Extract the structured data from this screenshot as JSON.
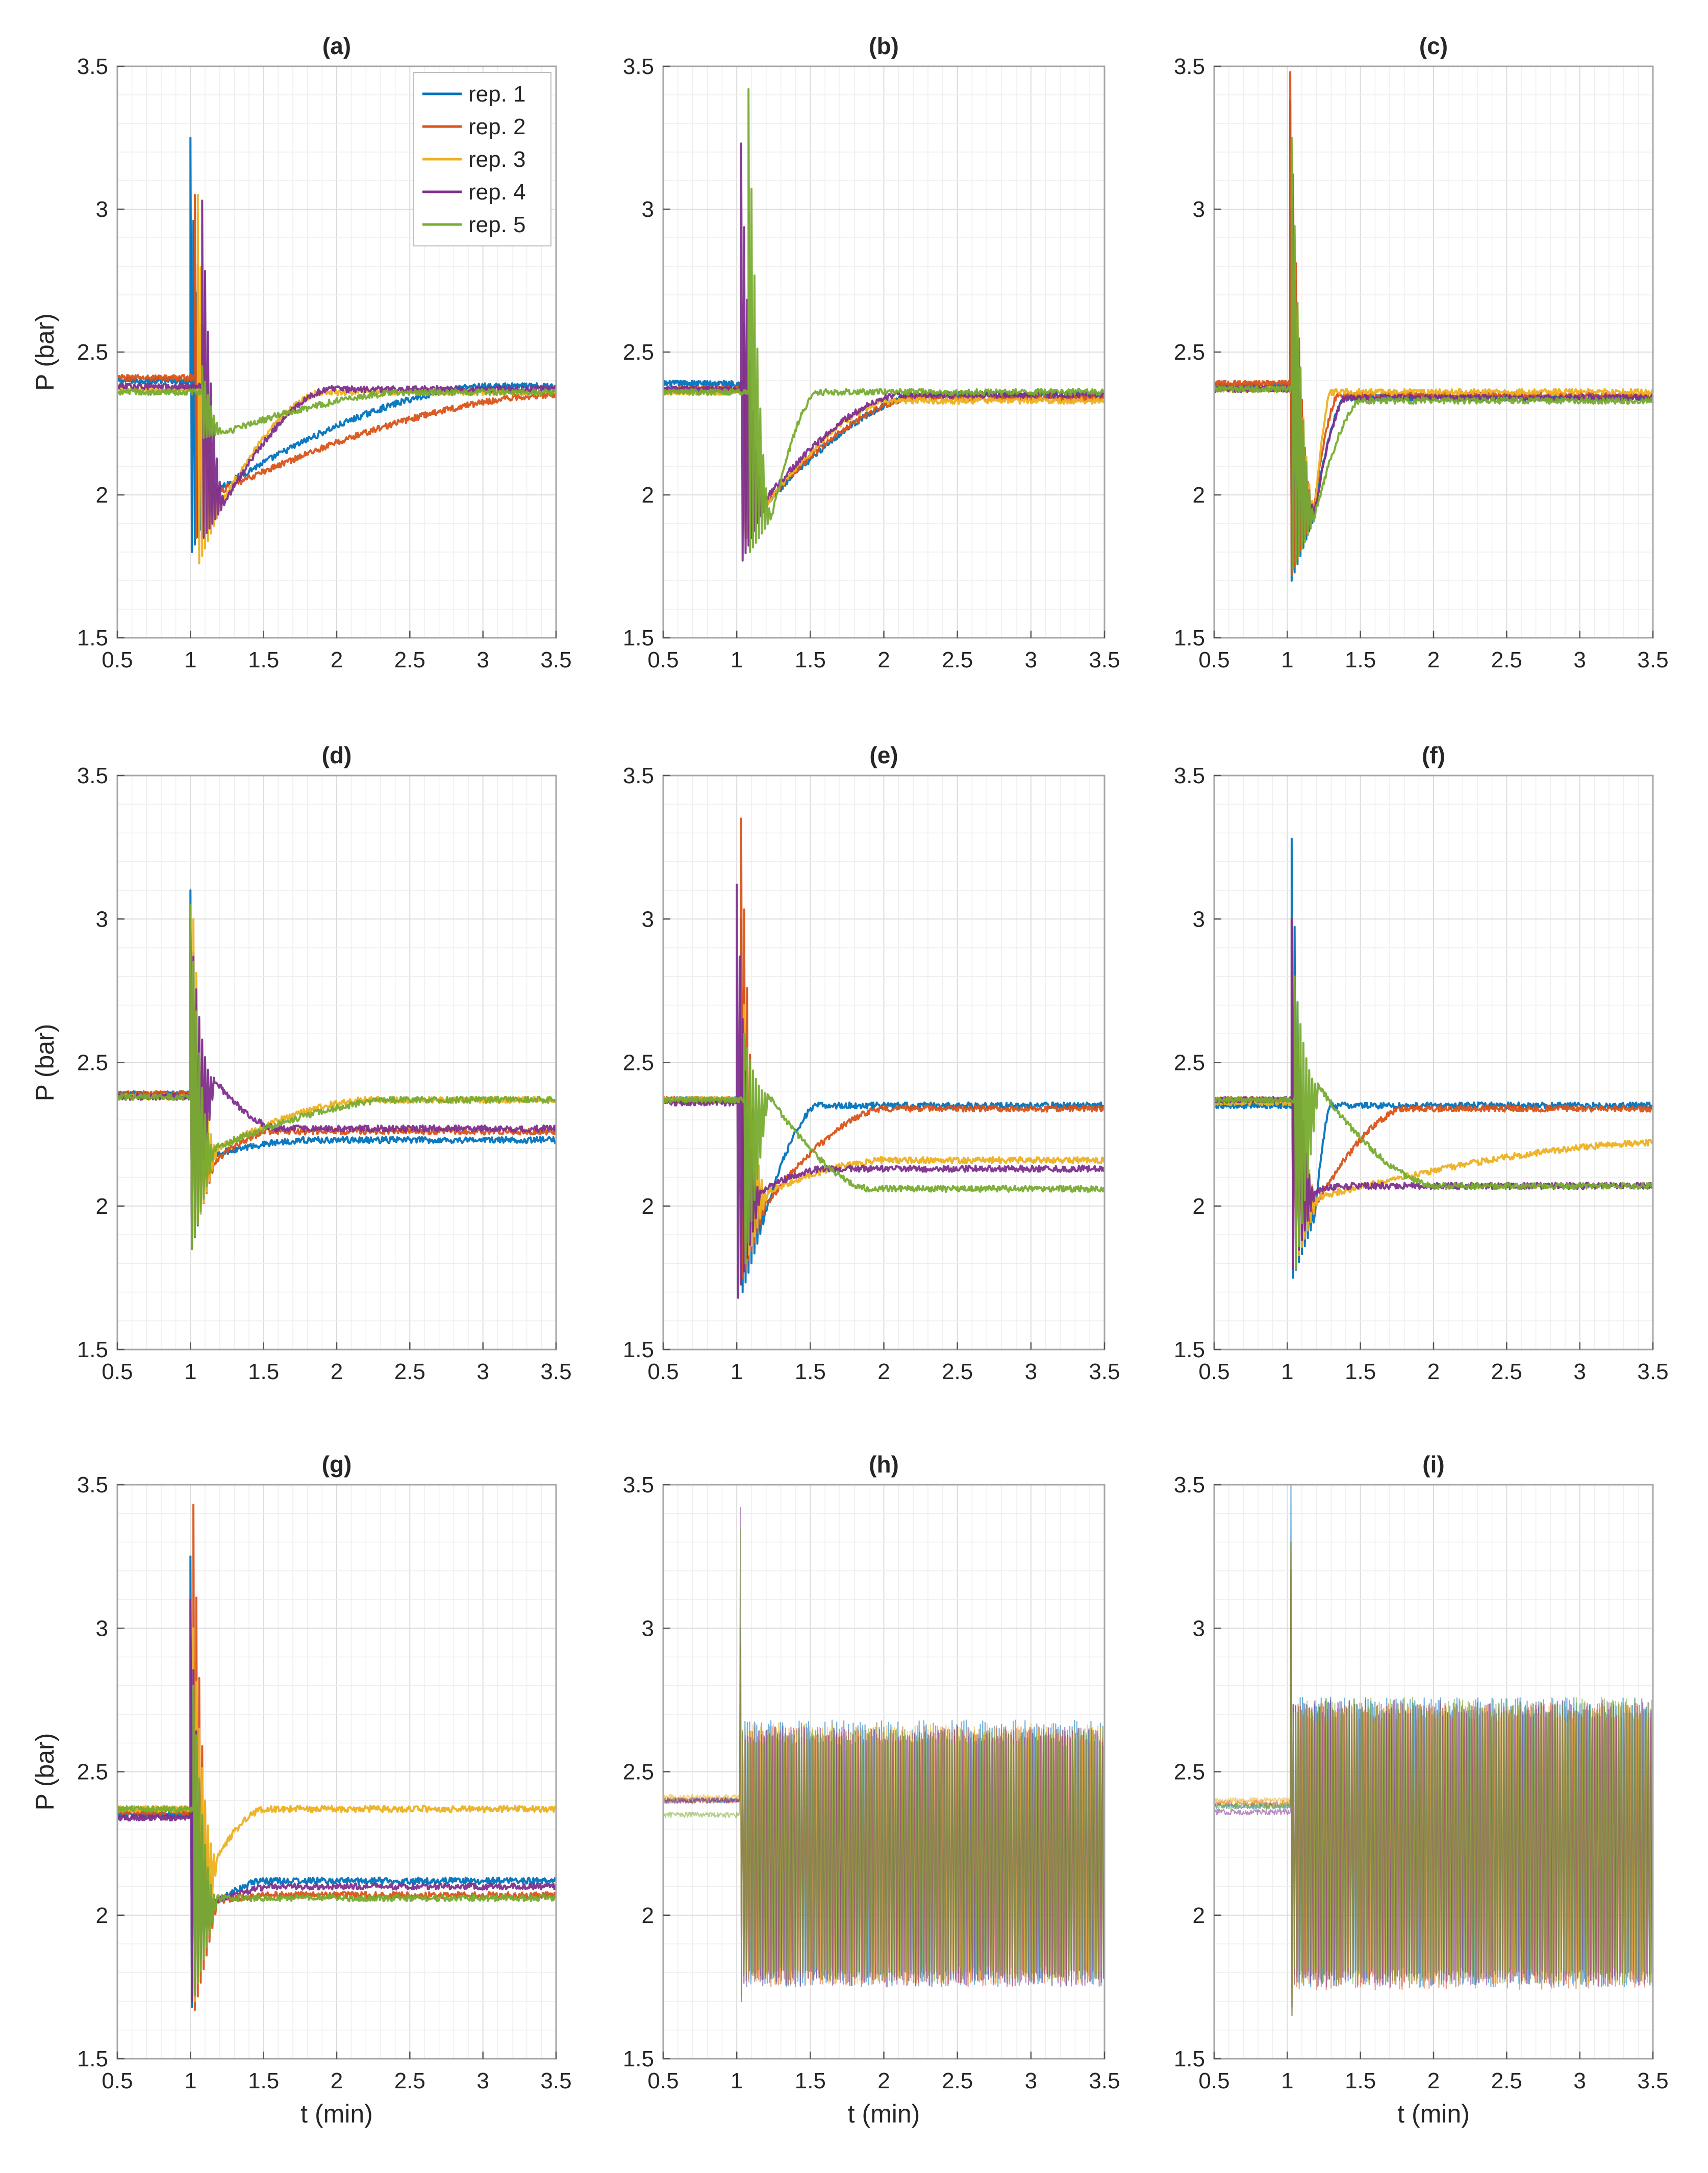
{
  "figure": {
    "ylabel": "P (bar)",
    "xlabel": "t (min)",
    "xlim": [
      0.5,
      3.5
    ],
    "ylim": [
      1.5,
      3.5
    ],
    "xticks": [
      "0.5",
      "1",
      "1.5",
      "2",
      "2.5",
      "3",
      "3.5"
    ],
    "yticks": [
      "1.5",
      "2",
      "2.5",
      "3",
      "3.5"
    ]
  },
  "legend": {
    "entries": [
      "rep. 1",
      "rep. 2",
      "rep. 3",
      "rep. 4",
      "rep. 5"
    ]
  },
  "colors": {
    "rep1": "#0072BD",
    "rep2": "#D95319",
    "rep3": "#EDB120",
    "rep4": "#7E2F8E",
    "rep5": "#77AC30",
    "grid": "#e6e6e6",
    "axis": "#a6a6a6"
  },
  "chart_data": [
    {
      "panel": "(a)",
      "type": "line",
      "title": "(a)",
      "xlabel": "",
      "ylabel": "P (bar)",
      "xlim": [
        0.5,
        3.5
      ],
      "ylim": [
        1.5,
        3.5
      ],
      "grid": true,
      "legend": "top-right",
      "series": [
        {
          "name": "rep. 1",
          "baseline": 2.4,
          "step_time": 1.0,
          "spike_max": 3.25,
          "spike_min": 1.8,
          "recovery_start": 2.01,
          "recovery_end_time": 3.0,
          "final": 2.38,
          "oscillating": false
        },
        {
          "name": "rep. 2",
          "baseline": 2.41,
          "step_time": 1.03,
          "spike_max": 3.05,
          "spike_min": 1.85,
          "recovery_start": 2.01,
          "recovery_end_time": 3.45,
          "final": 2.35,
          "oscillating": false
        },
        {
          "name": "rep. 3",
          "baseline": 2.37,
          "step_time": 1.05,
          "spike_max": 3.05,
          "spike_min": 1.76,
          "recovery_start": 1.97,
          "recovery_end_time": 1.9,
          "final": 2.36,
          "oscillating": false
        },
        {
          "name": "rep. 4",
          "baseline": 2.38,
          "step_time": 1.08,
          "spike_max": 3.03,
          "spike_min": 1.85,
          "recovery_start": 1.98,
          "recovery_end_time": 1.95,
          "final": 2.37,
          "oscillating": false
        },
        {
          "name": "rep. 5",
          "baseline": 2.36,
          "step_time": 1.08,
          "spike_max": 2.45,
          "spike_min": 2.2,
          "recovery_start": 2.22,
          "recovery_end_time": 2.5,
          "final": 2.36,
          "oscillating": false
        }
      ]
    },
    {
      "panel": "(b)",
      "type": "line",
      "title": "(b)",
      "xlabel": "",
      "ylabel": "",
      "xlim": [
        0.5,
        3.5
      ],
      "ylim": [
        1.5,
        3.5
      ],
      "grid": true,
      "series": [
        {
          "name": "rep. 1",
          "baseline": 2.39,
          "step_time": 1.05,
          "spike_max": 2.6,
          "spike_min": 1.85,
          "recovery_start": 1.97,
          "recovery_end_time": 2.25,
          "final": 2.35,
          "oscillating": false
        },
        {
          "name": "rep. 2",
          "baseline": 2.37,
          "step_time": 1.05,
          "spike_max": 2.55,
          "spike_min": 1.85,
          "recovery_start": 1.98,
          "recovery_end_time": 2.2,
          "final": 2.34,
          "oscillating": false
        },
        {
          "name": "rep. 3",
          "baseline": 2.36,
          "step_time": 1.06,
          "spike_max": 2.5,
          "spike_min": 1.85,
          "recovery_start": 1.98,
          "recovery_end_time": 2.05,
          "final": 2.33,
          "oscillating": false
        },
        {
          "name": "rep. 4",
          "baseline": 2.37,
          "step_time": 1.03,
          "spike_max": 3.23,
          "spike_min": 1.77,
          "recovery_start": 1.98,
          "recovery_end_time": 2.1,
          "final": 2.35,
          "oscillating": false
        },
        {
          "name": "rep. 5",
          "baseline": 2.36,
          "step_time": 1.08,
          "spike_max": 3.42,
          "spike_min": 1.8,
          "recovery_start": 1.93,
          "recovery_end_time": 1.55,
          "final": 2.36,
          "oscillating": false
        }
      ]
    },
    {
      "panel": "(c)",
      "type": "line",
      "title": "(c)",
      "xlabel": "",
      "ylabel": "",
      "xlim": [
        0.5,
        3.5
      ],
      "ylim": [
        1.5,
        3.5
      ],
      "grid": true,
      "series": [
        {
          "name": "rep. 1",
          "baseline": 2.38,
          "step_time": 1.02,
          "spike_max": 3.38,
          "spike_min": 1.7,
          "recovery_start": 1.93,
          "recovery_end_time": 1.4,
          "final": 2.34,
          "oscillating": false
        },
        {
          "name": "rep. 2",
          "baseline": 2.39,
          "step_time": 1.02,
          "spike_max": 3.48,
          "spike_min": 1.72,
          "recovery_start": 1.95,
          "recovery_end_time": 1.35,
          "final": 2.35,
          "oscillating": false
        },
        {
          "name": "rep. 3",
          "baseline": 2.37,
          "step_time": 1.03,
          "spike_max": 3.2,
          "spike_min": 1.75,
          "recovery_start": 1.96,
          "recovery_end_time": 1.3,
          "final": 2.36,
          "oscillating": false
        },
        {
          "name": "rep. 4",
          "baseline": 2.37,
          "step_time": 1.03,
          "spike_max": 3.0,
          "spike_min": 1.75,
          "recovery_start": 1.95,
          "recovery_end_time": 1.4,
          "final": 2.34,
          "oscillating": false
        },
        {
          "name": "rep. 5",
          "baseline": 2.37,
          "step_time": 1.03,
          "spike_max": 3.25,
          "spike_min": 1.74,
          "recovery_start": 1.93,
          "recovery_end_time": 1.5,
          "final": 2.33,
          "oscillating": false
        }
      ]
    },
    {
      "panel": "(d)",
      "type": "line",
      "title": "(d)",
      "xlabel": "",
      "ylabel": "P (bar)",
      "xlim": [
        0.5,
        3.5
      ],
      "ylim": [
        1.5,
        3.5
      ],
      "grid": true,
      "series": [
        {
          "name": "rep. 1",
          "baseline": 2.39,
          "step_time": 1.0,
          "spike_max": 3.1,
          "spike_min": 1.85,
          "recovery_start": 2.18,
          "recovery_end_time": 1.8,
          "final": 2.23,
          "oscillating": false
        },
        {
          "name": "rep. 2",
          "baseline": 2.39,
          "step_time": 1.0,
          "spike_max": 3.05,
          "spike_min": 1.87,
          "recovery_start": 2.15,
          "recovery_end_time": 1.55,
          "final": 2.26,
          "oscillating": false
        },
        {
          "name": "rep. 3",
          "baseline": 2.38,
          "step_time": 1.02,
          "spike_max": 3.0,
          "spike_min": 1.9,
          "recovery_start": 2.2,
          "recovery_end_time": 2.2,
          "final": 2.37,
          "oscillating": false
        },
        {
          "name": "rep. 4",
          "baseline": 2.38,
          "step_time": 1.0,
          "spike_max": 3.0,
          "spike_min": 1.88,
          "recovery_start": 2.44,
          "recovery_end_time": 1.6,
          "final": 2.27,
          "oscillating": false
        },
        {
          "name": "rep. 5",
          "baseline": 2.38,
          "step_time": 1.0,
          "spike_max": 3.05,
          "spike_min": 1.85,
          "recovery_start": 2.2,
          "recovery_end_time": 2.4,
          "final": 2.37,
          "oscillating": false
        }
      ]
    },
    {
      "panel": "(e)",
      "type": "line",
      "title": "(e)",
      "xlabel": "",
      "ylabel": "",
      "xlim": [
        0.5,
        3.5
      ],
      "ylim": [
        1.5,
        3.5
      ],
      "grid": true,
      "series": [
        {
          "name": "rep. 1",
          "baseline": 2.37,
          "step_time": 1.03,
          "spike_max": 3.0,
          "spike_min": 1.7,
          "recovery_start": 1.97,
          "recovery_end_time": 1.55,
          "final": 2.35,
          "oscillating": false
        },
        {
          "name": "rep. 2",
          "baseline": 2.37,
          "step_time": 1.03,
          "spike_max": 3.35,
          "spike_min": 1.75,
          "recovery_start": 2.0,
          "recovery_end_time": 2.0,
          "final": 2.34,
          "oscillating": false
        },
        {
          "name": "rep. 3",
          "baseline": 2.37,
          "step_time": 1.05,
          "spike_max": 2.7,
          "spike_min": 1.8,
          "recovery_start": 2.05,
          "recovery_end_time": 2.0,
          "final": 2.16,
          "oscillating": false
        },
        {
          "name": "rep. 4",
          "baseline": 2.36,
          "step_time": 1.0,
          "spike_max": 3.12,
          "spike_min": 1.68,
          "recovery_start": 2.05,
          "recovery_end_time": 1.6,
          "final": 2.13,
          "oscillating": false
        },
        {
          "name": "rep. 5",
          "baseline": 2.37,
          "step_time": 1.05,
          "spike_max": 2.6,
          "spike_min": 1.8,
          "recovery_start": 2.39,
          "recovery_end_time": 1.9,
          "final": 2.06,
          "oscillating": false
        }
      ]
    },
    {
      "panel": "(f)",
      "type": "line",
      "title": "(f)",
      "xlabel": "",
      "ylabel": "",
      "xlim": [
        0.5,
        3.5
      ],
      "ylim": [
        1.5,
        3.5
      ],
      "grid": true,
      "series": [
        {
          "name": "rep. 1",
          "baseline": 2.35,
          "step_time": 1.03,
          "spike_max": 3.28,
          "spike_min": 1.75,
          "recovery_start": 1.97,
          "recovery_end_time": 1.3,
          "final": 2.35,
          "oscillating": false
        },
        {
          "name": "rep. 2",
          "baseline": 2.37,
          "step_time": 1.03,
          "spike_max": 3.0,
          "spike_min": 1.8,
          "recovery_start": 2.0,
          "recovery_end_time": 1.8,
          "final": 2.34,
          "oscillating": false
        },
        {
          "name": "rep. 3",
          "baseline": 2.36,
          "step_time": 1.05,
          "spike_max": 2.7,
          "spike_min": 1.8,
          "recovery_start": 2.03,
          "recovery_end_time": 3.5,
          "final": 2.22,
          "oscillating": false
        },
        {
          "name": "rep. 4",
          "baseline": 2.37,
          "step_time": 1.03,
          "spike_max": 3.0,
          "spike_min": 1.78,
          "recovery_start": 2.05,
          "recovery_end_time": 1.4,
          "final": 2.07,
          "oscillating": false
        },
        {
          "name": "rep. 5",
          "baseline": 2.37,
          "step_time": 1.05,
          "spike_max": 2.8,
          "spike_min": 1.78,
          "recovery_start": 2.42,
          "recovery_end_time": 2.0,
          "final": 2.07,
          "oscillating": false
        }
      ]
    },
    {
      "panel": "(g)",
      "type": "line",
      "title": "(g)",
      "xlabel": "t (min)",
      "ylabel": "P (bar)",
      "xlim": [
        0.5,
        3.5
      ],
      "ylim": [
        1.5,
        3.5
      ],
      "grid": true,
      "series": [
        {
          "name": "rep. 1",
          "baseline": 2.35,
          "step_time": 1.0,
          "spike_max": 3.25,
          "spike_min": 1.68,
          "recovery_start": 2.04,
          "recovery_end_time": 1.5,
          "final": 2.12,
          "oscillating": false
        },
        {
          "name": "rep. 2",
          "baseline": 2.36,
          "step_time": 1.02,
          "spike_max": 3.43,
          "spike_min": 1.67,
          "recovery_start": 2.05,
          "recovery_end_time": 1.6,
          "final": 2.07,
          "oscillating": false
        },
        {
          "name": "rep. 3",
          "baseline": 2.37,
          "step_time": 1.02,
          "spike_max": 3.0,
          "spike_min": 1.7,
          "recovery_start": 2.2,
          "recovery_end_time": 1.5,
          "final": 2.37,
          "oscillating": false
        },
        {
          "name": "rep. 4",
          "baseline": 2.34,
          "step_time": 1.0,
          "spike_max": 3.1,
          "spike_min": 1.7,
          "recovery_start": 2.05,
          "recovery_end_time": 1.6,
          "final": 2.1,
          "oscillating": false
        },
        {
          "name": "rep. 5",
          "baseline": 2.37,
          "step_time": 1.02,
          "spike_max": 2.8,
          "spike_min": 1.72,
          "recovery_start": 2.06,
          "recovery_end_time": 1.6,
          "final": 2.06,
          "oscillating": false
        }
      ]
    },
    {
      "panel": "(h)",
      "type": "line",
      "title": "(h)",
      "xlabel": "t (min)",
      "ylabel": "",
      "xlim": [
        0.5,
        3.5
      ],
      "ylim": [
        1.5,
        3.5
      ],
      "grid": true,
      "series": [
        {
          "name": "rep. 1",
          "baseline": 2.4,
          "step_time": 1.02,
          "spike_max": 3.0,
          "spike_min": 1.7,
          "band_min": 1.75,
          "band_max": 2.68,
          "oscillating": true
        },
        {
          "name": "rep. 2",
          "baseline": 2.4,
          "step_time": 1.02,
          "spike_max": 2.95,
          "spike_min": 1.7,
          "band_min": 1.75,
          "band_max": 2.66,
          "oscillating": true
        },
        {
          "name": "rep. 3",
          "baseline": 2.41,
          "step_time": 1.02,
          "spike_max": 2.9,
          "spike_min": 1.72,
          "band_min": 1.76,
          "band_max": 2.67,
          "oscillating": true
        },
        {
          "name": "rep. 4",
          "baseline": 2.4,
          "step_time": 1.02,
          "spike_max": 3.42,
          "spike_min": 1.72,
          "band_min": 1.75,
          "band_max": 2.66,
          "oscillating": true
        },
        {
          "name": "rep. 5",
          "baseline": 2.35,
          "step_time": 1.02,
          "spike_max": 3.35,
          "spike_min": 1.7,
          "band_min": 1.77,
          "band_max": 2.65,
          "oscillating": true
        }
      ]
    },
    {
      "panel": "(i)",
      "type": "line",
      "title": "(i)",
      "xlabel": "t (min)",
      "ylabel": "",
      "xlim": [
        0.5,
        3.5
      ],
      "ylim": [
        1.5,
        3.5
      ],
      "grid": true,
      "series": [
        {
          "name": "rep. 1",
          "baseline": 2.38,
          "step_time": 1.02,
          "spike_max": 3.5,
          "spike_min": 1.65,
          "band_min": 1.75,
          "band_max": 2.76,
          "oscillating": true
        },
        {
          "name": "rep. 2",
          "baseline": 2.39,
          "step_time": 1.02,
          "spike_max": 3.3,
          "spike_min": 1.65,
          "band_min": 1.74,
          "band_max": 2.74,
          "oscillating": true
        },
        {
          "name": "rep. 3",
          "baseline": 2.4,
          "step_time": 1.02,
          "spike_max": 3.2,
          "spike_min": 1.7,
          "band_min": 1.76,
          "band_max": 2.73,
          "oscillating": true
        },
        {
          "name": "rep. 4",
          "baseline": 2.36,
          "step_time": 1.02,
          "spike_max": 3.2,
          "spike_min": 1.68,
          "band_min": 1.75,
          "band_max": 2.75,
          "oscillating": true
        },
        {
          "name": "rep. 5",
          "baseline": 2.38,
          "step_time": 1.02,
          "spike_max": 3.3,
          "spike_min": 1.66,
          "band_min": 1.76,
          "band_max": 2.76,
          "oscillating": true
        }
      ]
    }
  ]
}
